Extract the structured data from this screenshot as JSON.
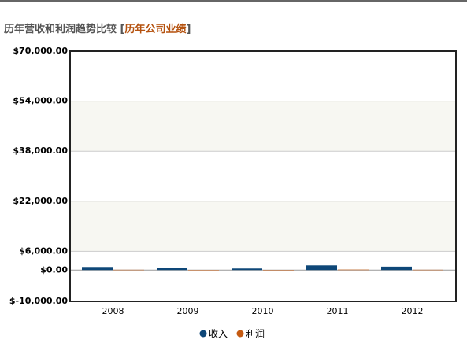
{
  "chart_data": {
    "type": "bar",
    "title": "历年营收和利润趋势比较",
    "link": "历年公司业绩",
    "categories": [
      "2008",
      "2009",
      "2010",
      "2011",
      "2012"
    ],
    "series": [
      {
        "name": "收入",
        "color": "#0e4778",
        "values": [
          1000,
          700,
          500,
          1500,
          1100
        ]
      },
      {
        "name": "利润",
        "color": "#c55a11",
        "values": [
          100,
          60,
          30,
          150,
          100
        ]
      }
    ],
    "ylim": [
      -10000,
      70000
    ],
    "yticks": [
      {
        "value": -10000,
        "label": "$-10,000.00"
      },
      {
        "value": 0,
        "label": "$0.00"
      },
      {
        "value": 6000,
        "label": "$6,000.00"
      },
      {
        "value": 22000,
        "label": "$22,000.00"
      },
      {
        "value": 38000,
        "label": "$38,000.00"
      },
      {
        "value": 54000,
        "label": "$54,000.00"
      },
      {
        "value": 70000,
        "label": "$70,000.00"
      }
    ],
    "grid": true
  }
}
